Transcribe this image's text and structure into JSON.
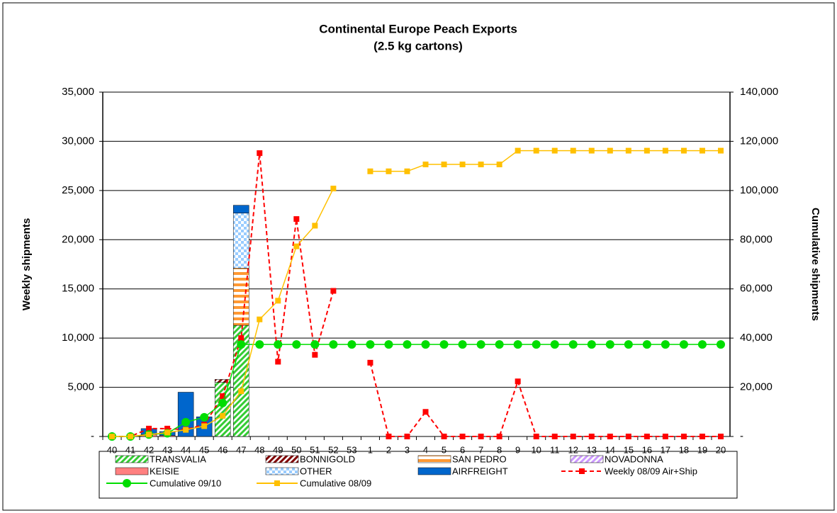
{
  "chart_data": {
    "type": "bar",
    "title": "Continental Europe Peach Exports",
    "subtitle": "(2.5 kg cartons)",
    "y_label": "Weekly shipments",
    "y2_label": "Cumulative shipments",
    "categories": [
      "40",
      "41",
      "42",
      "43",
      "44",
      "45",
      "46",
      "47",
      "48",
      "49",
      "50",
      "51",
      "52",
      "53",
      "1",
      "2",
      "3",
      "4",
      "5",
      "6",
      "7",
      "8",
      "9",
      "10",
      "11",
      "12",
      "13",
      "14",
      "15",
      "16",
      "17",
      "18",
      "19",
      "20"
    ],
    "ylim": [
      0,
      35000
    ],
    "yticks": [
      {
        "value": 0,
        "label": "-"
      },
      {
        "value": 5000,
        "label": "5,000"
      },
      {
        "value": 10000,
        "label": "10,000"
      },
      {
        "value": 15000,
        "label": "15,000"
      },
      {
        "value": 20000,
        "label": "20,000"
      },
      {
        "value": 25000,
        "label": "25,000"
      },
      {
        "value": 30000,
        "label": "30,000"
      },
      {
        "value": 35000,
        "label": "35,000"
      }
    ],
    "y2lim": [
      0,
      140000
    ],
    "y2ticks": [
      {
        "value": 0,
        "label": "-"
      },
      {
        "value": 20000,
        "label": "20,000"
      },
      {
        "value": 40000,
        "label": "40,000"
      },
      {
        "value": 60000,
        "label": "60,000"
      },
      {
        "value": 80000,
        "label": "80,000"
      },
      {
        "value": 100000,
        "label": "100,000"
      },
      {
        "value": 120000,
        "label": "120,000"
      },
      {
        "value": 140000,
        "label": "140,000"
      }
    ],
    "grid": true,
    "series": [
      {
        "name": "TRANSVALIA",
        "kind": "bar",
        "pattern": "diagonal",
        "color": "#33cc33",
        "values": [
          0,
          0,
          0,
          0,
          0,
          0,
          5500,
          11300,
          0,
          0,
          0,
          0,
          0,
          0,
          0,
          0,
          0,
          0,
          0,
          0,
          0,
          0,
          0,
          0,
          0,
          0,
          0,
          0,
          0,
          0,
          0,
          0,
          0,
          0
        ]
      },
      {
        "name": "BONNIGOLD",
        "kind": "bar",
        "pattern": "diagonal",
        "color": "#800000",
        "values": [
          0,
          0,
          0,
          0,
          0,
          0,
          300,
          0,
          0,
          0,
          0,
          0,
          0,
          0,
          0,
          0,
          0,
          0,
          0,
          0,
          0,
          0,
          0,
          0,
          0,
          0,
          0,
          0,
          0,
          0,
          0,
          0,
          0,
          0
        ]
      },
      {
        "name": "SAN PEDRO",
        "kind": "bar",
        "pattern": "horizontal",
        "color": "#ff9933",
        "values": [
          0,
          0,
          0,
          0,
          0,
          0,
          0,
          5800,
          0,
          0,
          0,
          0,
          0,
          0,
          0,
          0,
          0,
          0,
          0,
          0,
          0,
          0,
          0,
          0,
          0,
          0,
          0,
          0,
          0,
          0,
          0,
          0,
          0,
          0
        ]
      },
      {
        "name": "NOVADONNA",
        "kind": "bar",
        "pattern": "diagonal",
        "color": "#cc99ff",
        "values": [
          0,
          0,
          0,
          0,
          0,
          0,
          0,
          0,
          0,
          0,
          0,
          0,
          0,
          0,
          0,
          0,
          0,
          0,
          0,
          0,
          0,
          0,
          0,
          0,
          0,
          0,
          0,
          0,
          0,
          0,
          0,
          0,
          0,
          0
        ]
      },
      {
        "name": "KEISIE",
        "kind": "bar",
        "pattern": "solid",
        "color": "#ff8080",
        "values": [
          0,
          0,
          200,
          100,
          0,
          0,
          0,
          0,
          0,
          0,
          0,
          0,
          0,
          0,
          0,
          0,
          0,
          0,
          0,
          0,
          0,
          0,
          0,
          0,
          0,
          0,
          0,
          0,
          0,
          0,
          0,
          0,
          0,
          0
        ]
      },
      {
        "name": "OTHER",
        "kind": "bar",
        "pattern": "checker",
        "color": "#99ccff",
        "values": [
          0,
          0,
          0,
          0,
          0,
          0,
          0,
          5600,
          0,
          0,
          0,
          0,
          0,
          0,
          0,
          0,
          0,
          0,
          0,
          0,
          0,
          0,
          0,
          0,
          0,
          0,
          0,
          0,
          0,
          0,
          0,
          0,
          0,
          0
        ]
      },
      {
        "name": "AIRFREIGHT",
        "kind": "bar",
        "pattern": "solid",
        "color": "#0066cc",
        "values": [
          0,
          0,
          600,
          400,
          4500,
          2000,
          0,
          800,
          0,
          0,
          0,
          0,
          0,
          0,
          0,
          0,
          0,
          0,
          0,
          0,
          0,
          0,
          0,
          0,
          0,
          0,
          0,
          0,
          0,
          0,
          0,
          0,
          0,
          0
        ]
      },
      {
        "name": "Weekly 08/09 Air+Ship",
        "kind": "line",
        "dashed": true,
        "marker": "square",
        "color": "#ff0000",
        "values": [
          0,
          0,
          800,
          800,
          700,
          1200,
          4100,
          10000,
          28800,
          7600,
          22100,
          8300,
          14800,
          null,
          7500,
          0,
          0,
          2500,
          0,
          0,
          0,
          0,
          5600,
          0,
          0,
          0,
          0,
          0,
          0,
          0,
          0,
          0,
          0,
          0
        ]
      },
      {
        "name": "Cumulative 09/10",
        "kind": "line",
        "axis": "y2",
        "marker": "circle",
        "color": "#00dd00",
        "values": [
          0,
          0,
          800,
          1300,
          5800,
          7800,
          13600,
          37400,
          37400,
          37400,
          37400,
          37400,
          37400,
          37400,
          37400,
          37400,
          37400,
          37400,
          37400,
          37400,
          37400,
          37400,
          37400,
          37400,
          37400,
          37400,
          37400,
          37400,
          37400,
          37400,
          37400,
          37400,
          37400,
          37400
        ]
      },
      {
        "name": "Cumulative 08/09",
        "kind": "line",
        "axis": "y2",
        "marker": "square",
        "color": "#ffc000",
        "values": [
          0,
          0,
          800,
          1600,
          2700,
          4200,
          8400,
          18400,
          47600,
          55200,
          77300,
          85700,
          100800,
          null,
          107800,
          107800,
          107800,
          110600,
          110600,
          110600,
          110600,
          110600,
          116200,
          116200,
          116200,
          116200,
          116200,
          116200,
          116200,
          116200,
          116200,
          116200,
          116200,
          116200
        ]
      }
    ]
  }
}
